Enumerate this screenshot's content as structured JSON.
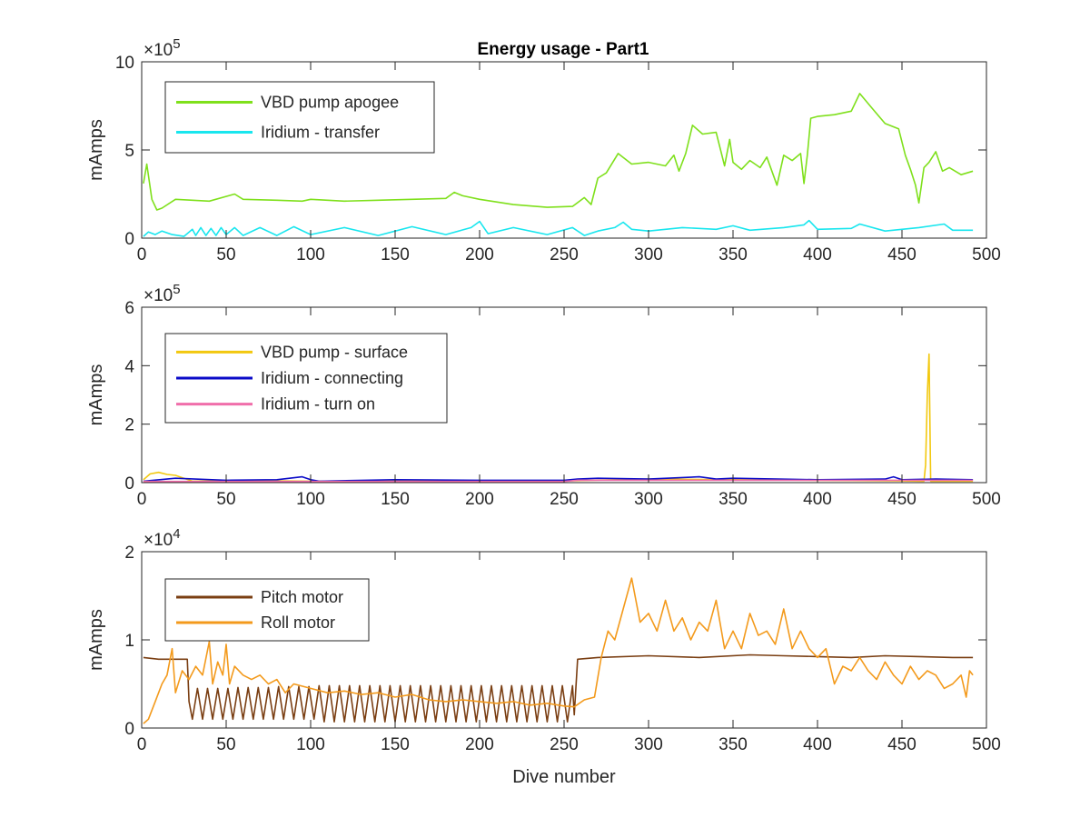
{
  "figure": {
    "title": "Energy usage - Part1"
  },
  "chart_data": [
    {
      "type": "line",
      "title": "Energy usage - Part1",
      "xlabel": "",
      "ylabel": "mAmps",
      "xlim": [
        0,
        500
      ],
      "ylim": [
        0,
        1000000
      ],
      "xticks": [
        0,
        50,
        100,
        150,
        200,
        250,
        300,
        350,
        400,
        450,
        500
      ],
      "yticks": [
        0,
        5,
        10
      ],
      "exponent": "5",
      "exponent_base": "×10",
      "legend_position": "top-left",
      "grid": false,
      "series": [
        {
          "name": "VBD pump apogee",
          "color": "#7fe01c",
          "x": [
            1,
            3,
            6,
            9,
            12,
            20,
            40,
            55,
            60,
            80,
            95,
            100,
            120,
            140,
            160,
            180,
            185,
            190,
            200,
            220,
            240,
            255,
            262,
            266,
            270,
            275,
            282,
            290,
            300,
            310,
            315,
            318,
            322,
            326,
            332,
            340,
            345,
            348,
            350,
            355,
            360,
            366,
            370,
            376,
            380,
            385,
            390,
            392,
            394,
            396,
            400,
            410,
            420,
            425,
            432,
            440,
            448,
            452,
            455,
            458,
            460,
            463,
            466,
            470,
            474,
            478,
            485,
            492
          ],
          "y": [
            310000,
            420000,
            220000,
            160000,
            170000,
            220000,
            210000,
            250000,
            220000,
            215000,
            210000,
            220000,
            210000,
            215000,
            220000,
            225000,
            260000,
            240000,
            220000,
            190000,
            175000,
            180000,
            230000,
            190000,
            340000,
            370000,
            480000,
            420000,
            430000,
            410000,
            470000,
            380000,
            480000,
            640000,
            590000,
            600000,
            410000,
            560000,
            430000,
            390000,
            440000,
            400000,
            460000,
            300000,
            470000,
            440000,
            480000,
            310000,
            470000,
            680000,
            690000,
            700000,
            720000,
            820000,
            740000,
            650000,
            620000,
            470000,
            390000,
            300000,
            200000,
            400000,
            430000,
            490000,
            380000,
            400000,
            360000,
            380000
          ]
        },
        {
          "name": "Iridium - transfer",
          "color": "#19e6ee",
          "x": [
            1,
            4,
            8,
            12,
            18,
            25,
            30,
            32,
            35,
            38,
            41,
            44,
            47,
            50,
            55,
            60,
            70,
            80,
            90,
            100,
            120,
            140,
            160,
            180,
            195,
            200,
            205,
            220,
            240,
            255,
            262,
            270,
            280,
            285,
            290,
            300,
            320,
            340,
            350,
            360,
            380,
            392,
            395,
            400,
            420,
            425,
            440,
            460,
            475,
            480,
            492
          ],
          "y": [
            10000,
            35000,
            20000,
            40000,
            20000,
            10000,
            50000,
            15000,
            60000,
            15000,
            55000,
            15000,
            60000,
            20000,
            60000,
            15000,
            60000,
            15000,
            65000,
            20000,
            60000,
            15000,
            65000,
            20000,
            60000,
            95000,
            25000,
            60000,
            20000,
            60000,
            15000,
            40000,
            60000,
            90000,
            50000,
            40000,
            60000,
            50000,
            70000,
            45000,
            60000,
            75000,
            100000,
            50000,
            55000,
            80000,
            40000,
            60000,
            80000,
            45000,
            45000
          ]
        }
      ]
    },
    {
      "type": "line",
      "title": "",
      "xlabel": "",
      "ylabel": "mAmps",
      "xlim": [
        0,
        500
      ],
      "ylim": [
        0,
        600000
      ],
      "xticks": [
        0,
        50,
        100,
        150,
        200,
        250,
        300,
        350,
        400,
        450,
        500
      ],
      "yticks": [
        0,
        2,
        4,
        6
      ],
      "exponent": "5",
      "exponent_base": "×10",
      "legend_position": "top-left",
      "grid": false,
      "series": [
        {
          "name": "VBD pump - surface",
          "color": "#f2c80f",
          "x": [
            1,
            5,
            10,
            15,
            20,
            25,
            30,
            40,
            60,
            80,
            100,
            150,
            200,
            250,
            300,
            350,
            400,
            450,
            463,
            464,
            465,
            466,
            467,
            468,
            480,
            492
          ],
          "y": [
            10000,
            30000,
            35000,
            28000,
            25000,
            15000,
            5000,
            6000,
            5000,
            6000,
            5000,
            6000,
            5000,
            6000,
            12000,
            10000,
            8000,
            6000,
            5000,
            60000,
            300000,
            440000,
            5000,
            5000,
            5000,
            5000
          ]
        },
        {
          "name": "Iridium - connecting",
          "color": "#0a0ac8",
          "x": [
            1,
            20,
            50,
            80,
            95,
            100,
            105,
            150,
            200,
            250,
            258,
            270,
            300,
            330,
            340,
            350,
            400,
            440,
            445,
            450,
            470,
            492
          ],
          "y": [
            5000,
            15000,
            8000,
            10000,
            20000,
            10000,
            5000,
            10000,
            8000,
            8000,
            12000,
            15000,
            12000,
            20000,
            12000,
            15000,
            10000,
            12000,
            20000,
            10000,
            12000,
            10000
          ]
        },
        {
          "name": "Iridium - turn on",
          "color": "#f06eaa",
          "x": [
            1,
            100,
            200,
            250,
            258,
            300,
            400,
            492
          ],
          "y": [
            4000,
            4000,
            4000,
            4000,
            8000,
            8000,
            8000,
            8000
          ]
        }
      ]
    },
    {
      "type": "line",
      "title": "",
      "xlabel": "Dive number",
      "ylabel": "mAmps",
      "xlim": [
        0,
        500
      ],
      "ylim": [
        0,
        20000
      ],
      "xticks": [
        0,
        50,
        100,
        150,
        200,
        250,
        300,
        350,
        400,
        450,
        500
      ],
      "yticks": [
        0,
        1,
        2
      ],
      "exponent": "4",
      "exponent_base": "×10",
      "legend_position": "top-left",
      "grid": false,
      "series": [
        {
          "name": "Pitch motor",
          "color": "#7a3e12",
          "x": [
            1,
            10,
            20,
            27,
            28,
            30,
            33,
            36,
            39,
            42,
            45,
            48,
            51,
            54,
            57,
            60,
            63,
            66,
            69,
            72,
            75,
            78,
            81,
            84,
            87,
            90,
            93,
            96,
            99,
            102,
            105,
            108,
            111,
            114,
            117,
            120,
            123,
            126,
            129,
            132,
            135,
            138,
            141,
            144,
            147,
            150,
            153,
            156,
            159,
            162,
            165,
            168,
            171,
            174,
            177,
            180,
            183,
            186,
            189,
            192,
            195,
            198,
            201,
            204,
            207,
            210,
            213,
            216,
            219,
            222,
            225,
            228,
            231,
            234,
            237,
            240,
            243,
            246,
            249,
            252,
            255,
            256,
            258,
            270,
            300,
            330,
            360,
            380,
            400,
            420,
            440,
            460,
            480,
            492
          ],
          "y": [
            8000,
            7800,
            7800,
            7800,
            3000,
            1000,
            4500,
            1000,
            4500,
            1000,
            4500,
            1000,
            4500,
            1000,
            4600,
            1000,
            4600,
            1000,
            4600,
            1000,
            4600,
            1000,
            4700,
            1000,
            4700,
            1000,
            4700,
            1000,
            4700,
            1000,
            4800,
            700,
            4800,
            700,
            4800,
            700,
            4800,
            700,
            4800,
            700,
            4800,
            700,
            4800,
            700,
            4800,
            700,
            4800,
            700,
            4800,
            700,
            4800,
            700,
            4800,
            700,
            4800,
            700,
            4800,
            700,
            4800,
            700,
            4800,
            700,
            4800,
            700,
            4800,
            700,
            4800,
            700,
            4800,
            700,
            4800,
            700,
            4800,
            700,
            4800,
            700,
            4800,
            700,
            4800,
            700,
            4800,
            1500,
            7800,
            8000,
            8200,
            8000,
            8300,
            8200,
            8100,
            8000,
            8200,
            8100,
            8000,
            8000
          ]
        },
        {
          "name": "Roll motor",
          "color": "#f39a1c",
          "x": [
            1,
            4,
            8,
            12,
            15,
            18,
            20,
            24,
            28,
            32,
            36,
            40,
            42,
            45,
            48,
            50,
            52,
            55,
            60,
            65,
            70,
            75,
            80,
            85,
            90,
            100,
            110,
            120,
            130,
            140,
            150,
            160,
            170,
            180,
            190,
            200,
            210,
            220,
            230,
            240,
            250,
            256,
            262,
            268,
            272,
            276,
            280,
            285,
            290,
            295,
            300,
            305,
            310,
            315,
            320,
            325,
            330,
            335,
            340,
            345,
            350,
            355,
            360,
            365,
            370,
            375,
            380,
            385,
            390,
            395,
            400,
            405,
            410,
            415,
            420,
            425,
            430,
            435,
            440,
            445,
            450,
            455,
            460,
            465,
            470,
            475,
            480,
            485,
            488,
            490,
            492
          ],
          "y": [
            500,
            1000,
            3000,
            5000,
            6000,
            9000,
            4000,
            6500,
            5500,
            7000,
            6000,
            9800,
            5000,
            7500,
            6000,
            9500,
            5000,
            7000,
            6000,
            5500,
            6000,
            5000,
            5500,
            4000,
            5000,
            4500,
            4000,
            4200,
            3800,
            4000,
            3500,
            3800,
            3200,
            3000,
            3200,
            3000,
            2800,
            3000,
            2600,
            2800,
            2500,
            2400,
            3200,
            3500,
            8000,
            11000,
            10000,
            13500,
            17000,
            12000,
            13000,
            11000,
            14500,
            11000,
            12500,
            10000,
            12000,
            11000,
            14500,
            9000,
            11000,
            9000,
            13000,
            10500,
            11000,
            9500,
            13500,
            9000,
            11000,
            9000,
            8000,
            9000,
            5000,
            7000,
            6500,
            8000,
            6500,
            5500,
            7500,
            6000,
            5000,
            7000,
            5500,
            6500,
            6000,
            4500,
            5000,
            6000,
            3500,
            6500,
            6000
          ]
        }
      ]
    }
  ]
}
